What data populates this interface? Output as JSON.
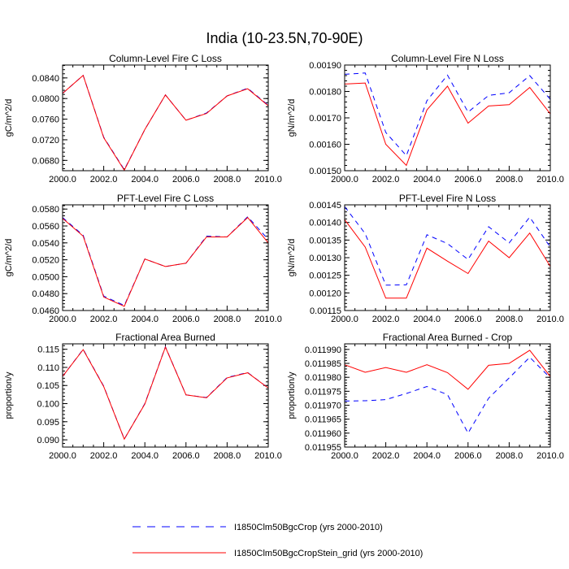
{
  "figure": {
    "title": "India (10-23.5N,70-90E)",
    "legend": [
      {
        "label": "I1850Clm50BgcCrop (yrs 2000-2010)",
        "color": "#0000ff",
        "dash": "dashed"
      },
      {
        "label": "I1850Clm50BgcCropStein_grid (yrs 2000-2010)",
        "color": "#ff0000",
        "dash": "solid"
      }
    ]
  },
  "chart_data": [
    {
      "type": "line",
      "title": "Column-Level Fire C Loss",
      "ylabel": "gC/m^2/d",
      "xlim": [
        2000,
        2010
      ],
      "ylim": [
        0.066,
        0.0865
      ],
      "xticks": [
        2000,
        2002,
        2004,
        2006,
        2008,
        2010
      ],
      "xtick_labels": [
        "2000.0",
        "2002.0",
        "2004.0",
        "2006.0",
        "2008.0",
        "2010.0"
      ],
      "yticks": [
        0.068,
        0.072,
        0.076,
        0.08,
        0.084
      ],
      "ytick_labels": [
        "0.0680",
        "0.0720",
        "0.0760",
        "0.0800",
        "0.0840"
      ],
      "x": [
        2000,
        2001,
        2002,
        2003,
        2004,
        2005,
        2006,
        2007,
        2008,
        2009,
        2010
      ],
      "series": [
        {
          "name": "I1850Clm50BgcCrop (yrs 2000-2010)",
          "values": [
            0.081,
            0.0845,
            0.0725,
            0.0662,
            0.074,
            0.0807,
            0.0758,
            0.0772,
            0.0805,
            0.082,
            0.0787
          ]
        },
        {
          "name": "I1850Clm50BgcCropStein_grid (yrs 2000-2010)",
          "values": [
            0.081,
            0.0845,
            0.0724,
            0.0661,
            0.074,
            0.0807,
            0.0758,
            0.0771,
            0.0805,
            0.0819,
            0.0786
          ]
        }
      ]
    },
    {
      "type": "line",
      "title": "Column-Level Fire N Loss",
      "ylabel": "gN/m^2/d",
      "xlim": [
        2000,
        2010
      ],
      "ylim": [
        0.0015,
        0.0019
      ],
      "xticks": [
        2000,
        2002,
        2004,
        2006,
        2008,
        2010
      ],
      "xtick_labels": [
        "2000.0",
        "2002.0",
        "2004.0",
        "2006.0",
        "2008.0",
        "2010.0"
      ],
      "yticks": [
        0.0015,
        0.0016,
        0.0017,
        0.0018,
        0.0019
      ],
      "ytick_labels": [
        "0.00150",
        "0.00160",
        "0.00170",
        "0.00180",
        "0.00190"
      ],
      "x": [
        2000,
        2001,
        2002,
        2003,
        2004,
        2005,
        2006,
        2007,
        2008,
        2009,
        2010
      ],
      "series": [
        {
          "name": "I1850Clm50BgcCrop (yrs 2000-2010)",
          "values": [
            0.001865,
            0.00187,
            0.001645,
            0.001557,
            0.001765,
            0.001862,
            0.001722,
            0.001785,
            0.001795,
            0.00186,
            0.00177
          ]
        },
        {
          "name": "I1850Clm50BgcCropStein_grid (yrs 2000-2010)",
          "values": [
            0.001828,
            0.001832,
            0.0016,
            0.00152,
            0.00173,
            0.00182,
            0.00168,
            0.001745,
            0.00175,
            0.001815,
            0.001715
          ]
        }
      ]
    },
    {
      "type": "line",
      "title": "PFT-Level Fire C Loss",
      "ylabel": "gC/m^2/d",
      "xlim": [
        2000,
        2010
      ],
      "ylim": [
        0.046,
        0.0585
      ],
      "xticks": [
        2000,
        2002,
        2004,
        2006,
        2008,
        2010
      ],
      "xtick_labels": [
        "2000.0",
        "2002.0",
        "2004.0",
        "2006.0",
        "2008.0",
        "2010.0"
      ],
      "yticks": [
        0.046,
        0.048,
        0.05,
        0.052,
        0.054,
        0.056,
        0.058
      ],
      "ytick_labels": [
        "0.0460",
        "0.0480",
        "0.0500",
        "0.0520",
        "0.0540",
        "0.0560",
        "0.0580"
      ],
      "x": [
        2000,
        2001,
        2002,
        2003,
        2004,
        2005,
        2006,
        2007,
        2008,
        2009,
        2010
      ],
      "series": [
        {
          "name": "I1850Clm50BgcCrop (yrs 2000-2010)",
          "values": [
            0.057,
            0.0549,
            0.0477,
            0.0466,
            0.0521,
            0.0512,
            0.0516,
            0.0548,
            0.0547,
            0.0571,
            0.0544
          ]
        },
        {
          "name": "I1850Clm50BgcCropStein_grid (yrs 2000-2010)",
          "values": [
            0.0569,
            0.0548,
            0.0476,
            0.0465,
            0.0521,
            0.0512,
            0.0516,
            0.0547,
            0.0547,
            0.057,
            0.054
          ]
        }
      ]
    },
    {
      "type": "line",
      "title": "PFT-Level Fire N Loss",
      "ylabel": "gN/m^2/d",
      "xlim": [
        2000,
        2010
      ],
      "ylim": [
        0.00115,
        0.00145
      ],
      "xticks": [
        2000,
        2002,
        2004,
        2006,
        2008,
        2010
      ],
      "xtick_labels": [
        "2000.0",
        "2002.0",
        "2004.0",
        "2006.0",
        "2008.0",
        "2010.0"
      ],
      "yticks": [
        0.00115,
        0.0012,
        0.00125,
        0.0013,
        0.00135,
        0.0014,
        0.00145
      ],
      "ytick_labels": [
        "0.00115",
        "0.00120",
        "0.00125",
        "0.00130",
        "0.00135",
        "0.00140",
        "0.00145"
      ],
      "x": [
        2000,
        2001,
        2002,
        2003,
        2004,
        2005,
        2006,
        2007,
        2008,
        2009,
        2010
      ],
      "series": [
        {
          "name": "I1850Clm50BgcCrop (yrs 2000-2010)",
          "values": [
            0.001445,
            0.001368,
            0.001222,
            0.001223,
            0.001365,
            0.00134,
            0.001295,
            0.001388,
            0.001342,
            0.001415,
            0.00133
          ]
        },
        {
          "name": "I1850Clm50BgcCropStein_grid (yrs 2000-2010)",
          "values": [
            0.001408,
            0.00133,
            0.001185,
            0.001185,
            0.001327,
            0.00129,
            0.001255,
            0.001347,
            0.0013,
            0.00137,
            0.001275
          ]
        }
      ]
    },
    {
      "type": "line",
      "title": "Fractional Area Burned",
      "ylabel": "proportion/y",
      "xlim": [
        2000,
        2010
      ],
      "ylim": [
        0.088,
        0.1165
      ],
      "xticks": [
        2000,
        2002,
        2004,
        2006,
        2008,
        2010
      ],
      "xtick_labels": [
        "2000.0",
        "2002.0",
        "2004.0",
        "2006.0",
        "2008.0",
        "2010.0"
      ],
      "yticks": [
        0.09,
        0.095,
        0.1,
        0.105,
        0.11,
        0.115
      ],
      "ytick_labels": [
        "0.090",
        "0.095",
        "0.100",
        "0.105",
        "0.110",
        "0.115"
      ],
      "x": [
        2000,
        2001,
        2002,
        2003,
        2004,
        2005,
        2006,
        2007,
        2008,
        2009,
        2010
      ],
      "series": [
        {
          "name": "I1850Clm50BgcCrop (yrs 2000-2010)",
          "values": [
            0.1075,
            0.115,
            0.1048,
            0.0902,
            0.1,
            0.1157,
            0.1024,
            0.1017,
            0.1072,
            0.1086,
            0.1043
          ]
        },
        {
          "name": "I1850Clm50BgcCropStein_grid (yrs 2000-2010)",
          "values": [
            0.1075,
            0.1149,
            0.1047,
            0.0902,
            0.0999,
            0.1156,
            0.1024,
            0.1016,
            0.1071,
            0.1085,
            0.1043
          ]
        }
      ]
    },
    {
      "type": "line",
      "title": "Fractional Area Burned - Crop",
      "ylabel": "proportion/y",
      "xlim": [
        2000,
        2010
      ],
      "ylim": [
        0.011955,
        0.011992
      ],
      "xticks": [
        2000,
        2002,
        2004,
        2006,
        2008,
        2010
      ],
      "xtick_labels": [
        "2000.0",
        "2002.0",
        "2004.0",
        "2006.0",
        "2008.0",
        "2010.0"
      ],
      "yticks": [
        0.011955,
        0.01196,
        0.011965,
        0.01197,
        0.011975,
        0.01198,
        0.011985,
        0.01199
      ],
      "ytick_labels": [
        "0.011955",
        "0.011960",
        "0.011965",
        "0.011970",
        "0.011975",
        "0.011980",
        "0.011985",
        "0.011990"
      ],
      "x": [
        2000,
        2001,
        2002,
        2003,
        2004,
        2005,
        2006,
        2007,
        2008,
        2009,
        2010
      ],
      "series": [
        {
          "name": "I1850Clm50BgcCrop (yrs 2000-2010)",
          "values": [
            0.0119715,
            0.0119716,
            0.011972,
            0.0119742,
            0.0119767,
            0.0119738,
            0.01196,
            0.0119725,
            0.0119798,
            0.0119872,
            0.0119798
          ]
        },
        {
          "name": "I1850Clm50BgcCropStein_grid (yrs 2000-2010)",
          "values": [
            0.0119845,
            0.0119818,
            0.0119835,
            0.0119818,
            0.0119845,
            0.0119817,
            0.0119757,
            0.0119843,
            0.011985,
            0.0119897,
            0.0119803
          ]
        }
      ]
    }
  ]
}
